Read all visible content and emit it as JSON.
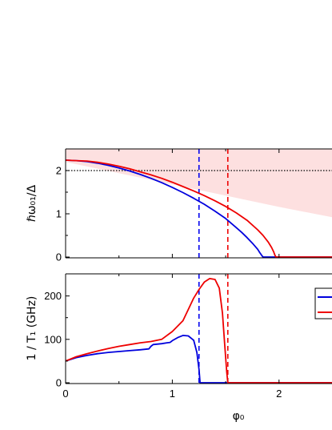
{
  "chart_data": [
    {
      "type": "line",
      "panel": "top",
      "ylabel": "ℏω₀₁/Δ",
      "xlim": [
        0,
        2.5
      ],
      "ylim": [
        0,
        2.5
      ],
      "yticks": [
        "0",
        "1",
        "2"
      ],
      "grid": false,
      "shaded_region": {
        "color": "#fde0e0",
        "upper": 2.5,
        "lower_x": [
          0,
          0.5,
          1.0,
          1.5,
          2.0,
          2.5
        ],
        "lower_y": [
          2.2,
          1.94,
          1.68,
          1.42,
          1.16,
          0.92
        ]
      },
      "reference_lines": [
        {
          "orientation": "horizontal",
          "y": 2.0,
          "style": "dotted",
          "color": "#000000"
        },
        {
          "orientation": "vertical",
          "x": 1.25,
          "style": "dashed",
          "color": "#0000ee"
        },
        {
          "orientation": "vertical",
          "x": 1.52,
          "style": "dashed",
          "color": "#ee0000"
        }
      ],
      "series": [
        {
          "color": "#0000dd",
          "x": [
            0,
            0.1,
            0.2,
            0.3,
            0.4,
            0.5,
            0.6,
            0.7,
            0.8,
            0.9,
            1.0,
            1.1,
            1.2,
            1.3,
            1.4,
            1.5,
            1.6,
            1.65,
            1.7,
            1.75,
            1.8,
            1.82,
            1.84,
            1.85,
            1.9,
            2.0,
            2.5
          ],
          "y": [
            2.24,
            2.23,
            2.21,
            2.17,
            2.12,
            2.06,
            1.99,
            1.91,
            1.82,
            1.72,
            1.61,
            1.49,
            1.36,
            1.22,
            1.06,
            0.89,
            0.68,
            0.57,
            0.45,
            0.32,
            0.18,
            0.1,
            0.03,
            0,
            0,
            0,
            0
          ]
        },
        {
          "color": "#ee0000",
          "x": [
            0,
            0.1,
            0.2,
            0.3,
            0.4,
            0.5,
            0.6,
            0.7,
            0.8,
            0.9,
            1.0,
            1.1,
            1.2,
            1.3,
            1.4,
            1.5,
            1.6,
            1.7,
            1.8,
            1.85,
            1.9,
            1.93,
            1.95,
            1.96,
            1.97,
            2.0,
            2.5
          ],
          "y": [
            2.24,
            2.23,
            2.22,
            2.19,
            2.15,
            2.1,
            2.04,
            1.97,
            1.9,
            1.82,
            1.73,
            1.63,
            1.53,
            1.42,
            1.3,
            1.17,
            1.02,
            0.85,
            0.63,
            0.5,
            0.34,
            0.22,
            0.12,
            0.05,
            0,
            0,
            0
          ]
        }
      ]
    },
    {
      "type": "line",
      "panel": "bottom",
      "xlabel": "φ₀",
      "ylabel": "1 / T₁ (GHz)",
      "xlim": [
        0,
        2.5
      ],
      "ylim": [
        0,
        250
      ],
      "xticks": [
        "0",
        "1",
        "2"
      ],
      "yticks": [
        "0",
        "100",
        "200"
      ],
      "grid": false,
      "reference_lines": [
        {
          "orientation": "vertical",
          "x": 1.25,
          "style": "dashed",
          "color": "#0000ee"
        },
        {
          "orientation": "vertical",
          "x": 1.52,
          "style": "dashed",
          "color": "#ee0000"
        }
      ],
      "series": [
        {
          "color": "#0000dd",
          "x": [
            0,
            0.1,
            0.2,
            0.3,
            0.4,
            0.5,
            0.6,
            0.7,
            0.78,
            0.8,
            0.82,
            0.9,
            0.95,
            0.98,
            1.0,
            1.05,
            1.1,
            1.15,
            1.2,
            1.23,
            1.25,
            1.26,
            1.5,
            2.0,
            2.5
          ],
          "y": [
            50,
            58,
            63,
            67,
            70,
            72,
            74,
            76,
            78,
            84,
            88,
            90,
            92,
            93,
            97,
            104,
            109,
            108,
            98,
            70,
            30,
            0,
            0,
            0,
            0
          ]
        },
        {
          "color": "#ee0000",
          "x": [
            0,
            0.1,
            0.2,
            0.3,
            0.4,
            0.5,
            0.6,
            0.7,
            0.8,
            0.9,
            1.0,
            1.1,
            1.2,
            1.25,
            1.3,
            1.35,
            1.4,
            1.44,
            1.47,
            1.49,
            1.51,
            1.52,
            1.53,
            2.0,
            2.5
          ],
          "y": [
            50,
            60,
            67,
            73,
            79,
            84,
            88,
            92,
            95,
            100,
            118,
            143,
            195,
            215,
            232,
            240,
            238,
            218,
            160,
            90,
            25,
            0,
            0,
            0,
            0
          ]
        }
      ]
    }
  ]
}
